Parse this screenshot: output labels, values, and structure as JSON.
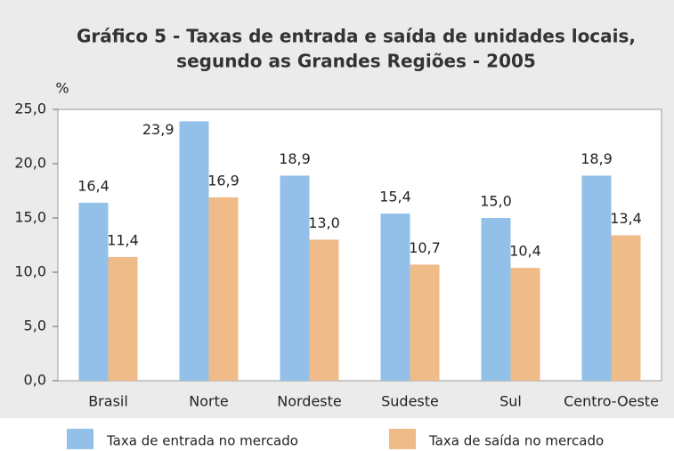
{
  "chart_data": {
    "type": "bar",
    "title": "Gráfico 5 - Taxas de entrada e saída de unidades locais,",
    "subtitle": "segundo as Grandes Regiões - 2005",
    "ylabel": "%",
    "categories": [
      "Brasil",
      "Norte",
      "Nordeste",
      "Sudeste",
      "Sul",
      "Centro-Oeste"
    ],
    "series": [
      {
        "name": "Taxa de entrada no mercado",
        "color": "#92c0e9",
        "values": [
          16.4,
          23.9,
          18.9,
          15.4,
          15.0,
          18.9
        ],
        "value_labels": [
          "16,4",
          "23,9",
          "18,9",
          "15,4",
          "15,0",
          "18,9"
        ]
      },
      {
        "name": "Taxa de saída no mercado",
        "color": "#efbb88",
        "values": [
          11.4,
          16.9,
          13.0,
          10.7,
          10.4,
          13.4
        ],
        "value_labels": [
          "11,4",
          "16,9",
          "13,0",
          "10,7",
          "10,4",
          "13,4"
        ]
      }
    ],
    "ylim": [
      0,
      25
    ],
    "yticks": [
      {
        "value": 0,
        "label": "0,0"
      },
      {
        "value": 5,
        "label": "5,0"
      },
      {
        "value": 10,
        "label": "10,0"
      },
      {
        "value": 15,
        "label": "15,0"
      },
      {
        "value": 20,
        "label": "20,0"
      },
      {
        "value": 25,
        "label": "25,0"
      }
    ],
    "legend": "bottom"
  }
}
